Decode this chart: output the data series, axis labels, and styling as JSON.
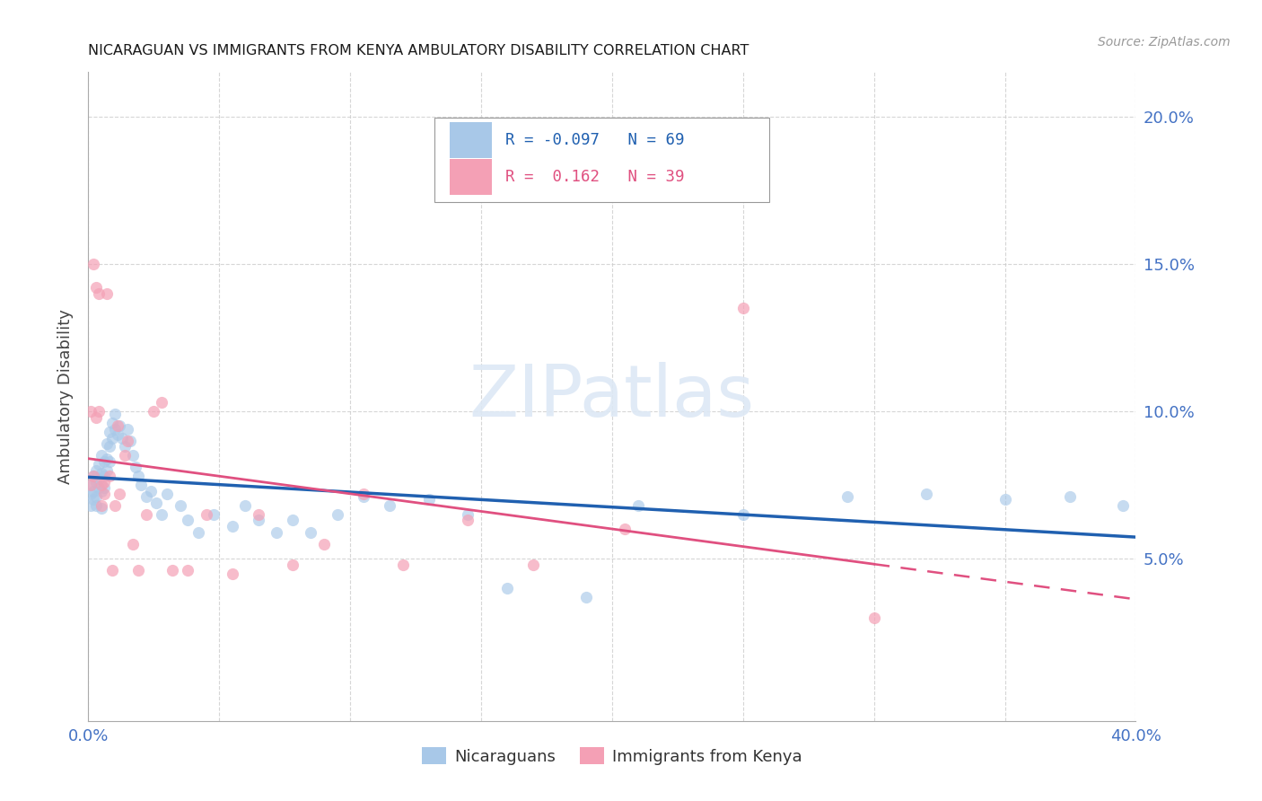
{
  "title": "NICARAGUAN VS IMMIGRANTS FROM KENYA AMBULATORY DISABILITY CORRELATION CHART",
  "source": "Source: ZipAtlas.com",
  "ylabel": "Ambulatory Disability",
  "ytick_vals": [
    0.05,
    0.1,
    0.15,
    0.2
  ],
  "ytick_labels": [
    "5.0%",
    "10.0%",
    "15.0%",
    "20.0%"
  ],
  "xlim": [
    0.0,
    0.4
  ],
  "ylim": [
    -0.005,
    0.215
  ],
  "xtick_vals": [
    0.0,
    0.05,
    0.1,
    0.15,
    0.2,
    0.25,
    0.3,
    0.35,
    0.4
  ],
  "xtick_labels": [
    "0.0%",
    "",
    "",
    "",
    "",
    "",
    "",
    "",
    "40.0%"
  ],
  "legend_text1": "R = -0.097   N = 69",
  "legend_text2": "R =  0.162   N = 39",
  "color_blue": "#a8c8e8",
  "color_pink": "#f4a0b5",
  "color_blue_line": "#2060b0",
  "color_pink_line": "#e05080",
  "color_axis": "#4472c4",
  "color_grid": "#cccccc",
  "watermark_color": "#dde8f5",
  "nicaraguan_x": [
    0.001,
    0.001,
    0.001,
    0.002,
    0.002,
    0.002,
    0.003,
    0.003,
    0.003,
    0.003,
    0.004,
    0.004,
    0.004,
    0.005,
    0.005,
    0.005,
    0.005,
    0.006,
    0.006,
    0.006,
    0.007,
    0.007,
    0.007,
    0.008,
    0.008,
    0.008,
    0.009,
    0.009,
    0.01,
    0.01,
    0.011,
    0.012,
    0.013,
    0.014,
    0.015,
    0.016,
    0.017,
    0.018,
    0.019,
    0.02,
    0.022,
    0.024,
    0.026,
    0.028,
    0.03,
    0.035,
    0.038,
    0.042,
    0.048,
    0.055,
    0.06,
    0.065,
    0.072,
    0.078,
    0.085,
    0.095,
    0.105,
    0.115,
    0.13,
    0.145,
    0.16,
    0.19,
    0.21,
    0.25,
    0.29,
    0.32,
    0.35,
    0.375,
    0.395
  ],
  "nicaraguan_y": [
    0.072,
    0.075,
    0.068,
    0.078,
    0.073,
    0.07,
    0.076,
    0.08,
    0.071,
    0.068,
    0.082,
    0.077,
    0.074,
    0.085,
    0.079,
    0.073,
    0.067,
    0.083,
    0.078,
    0.074,
    0.089,
    0.084,
    0.08,
    0.093,
    0.088,
    0.083,
    0.096,
    0.091,
    0.099,
    0.094,
    0.092,
    0.095,
    0.091,
    0.088,
    0.094,
    0.09,
    0.085,
    0.081,
    0.078,
    0.075,
    0.071,
    0.073,
    0.069,
    0.065,
    0.072,
    0.068,
    0.063,
    0.059,
    0.065,
    0.061,
    0.068,
    0.063,
    0.059,
    0.063,
    0.059,
    0.065,
    0.071,
    0.068,
    0.07,
    0.065,
    0.04,
    0.037,
    0.068,
    0.065,
    0.071,
    0.072,
    0.07,
    0.071,
    0.068
  ],
  "kenya_x": [
    0.001,
    0.001,
    0.002,
    0.002,
    0.003,
    0.003,
    0.004,
    0.004,
    0.005,
    0.005,
    0.006,
    0.006,
    0.007,
    0.008,
    0.009,
    0.01,
    0.011,
    0.012,
    0.014,
    0.015,
    0.017,
    0.019,
    0.022,
    0.025,
    0.028,
    0.032,
    0.038,
    0.045,
    0.055,
    0.065,
    0.078,
    0.09,
    0.105,
    0.12,
    0.145,
    0.17,
    0.205,
    0.25,
    0.3
  ],
  "kenya_y": [
    0.075,
    0.1,
    0.15,
    0.078,
    0.142,
    0.098,
    0.1,
    0.14,
    0.075,
    0.068,
    0.072,
    0.076,
    0.14,
    0.078,
    0.046,
    0.068,
    0.095,
    0.072,
    0.085,
    0.09,
    0.055,
    0.046,
    0.065,
    0.1,
    0.103,
    0.046,
    0.046,
    0.065,
    0.045,
    0.065,
    0.048,
    0.055,
    0.072,
    0.048,
    0.063,
    0.048,
    0.06,
    0.135,
    0.03
  ]
}
